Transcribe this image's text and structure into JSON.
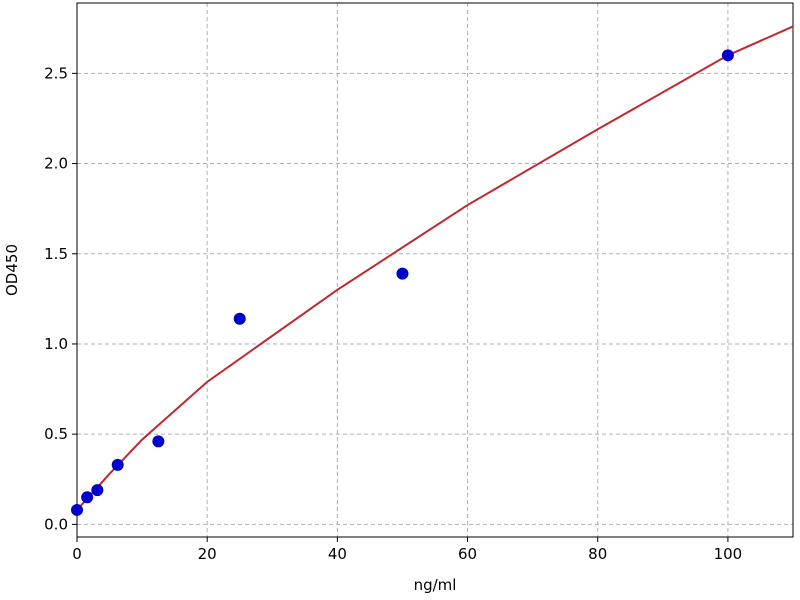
{
  "chart_data": {
    "type": "scatter",
    "x_label": "ng/ml",
    "y_label": "OD450",
    "xlim": [
      0,
      110
    ],
    "ylim": [
      -0.07,
      2.89
    ],
    "xticks": [
      0,
      20,
      40,
      60,
      80,
      100
    ],
    "yticks": [
      {
        "value": 0,
        "label": "0.0"
      },
      0.5,
      {
        "value": 1,
        "label": "1.0"
      },
      1.5,
      {
        "value": 2,
        "label": "2.0"
      },
      2.5
    ],
    "grid": true,
    "series": [
      {
        "kind": "points",
        "color": "#0000cc",
        "x": [
          0,
          1.56,
          3.125,
          6.25,
          12.5,
          25,
          50,
          100
        ],
        "values": [
          0.08,
          0.15,
          0.19,
          0.33,
          0.46,
          1.14,
          1.39,
          2.6
        ]
      },
      {
        "kind": "line",
        "color": "#c0282d",
        "x": [
          0,
          5,
          10,
          20,
          40,
          60,
          80,
          100,
          110
        ],
        "values": [
          0.08,
          0.28,
          0.47,
          0.79,
          1.3,
          1.77,
          2.19,
          2.6,
          2.76
        ]
      }
    ]
  }
}
